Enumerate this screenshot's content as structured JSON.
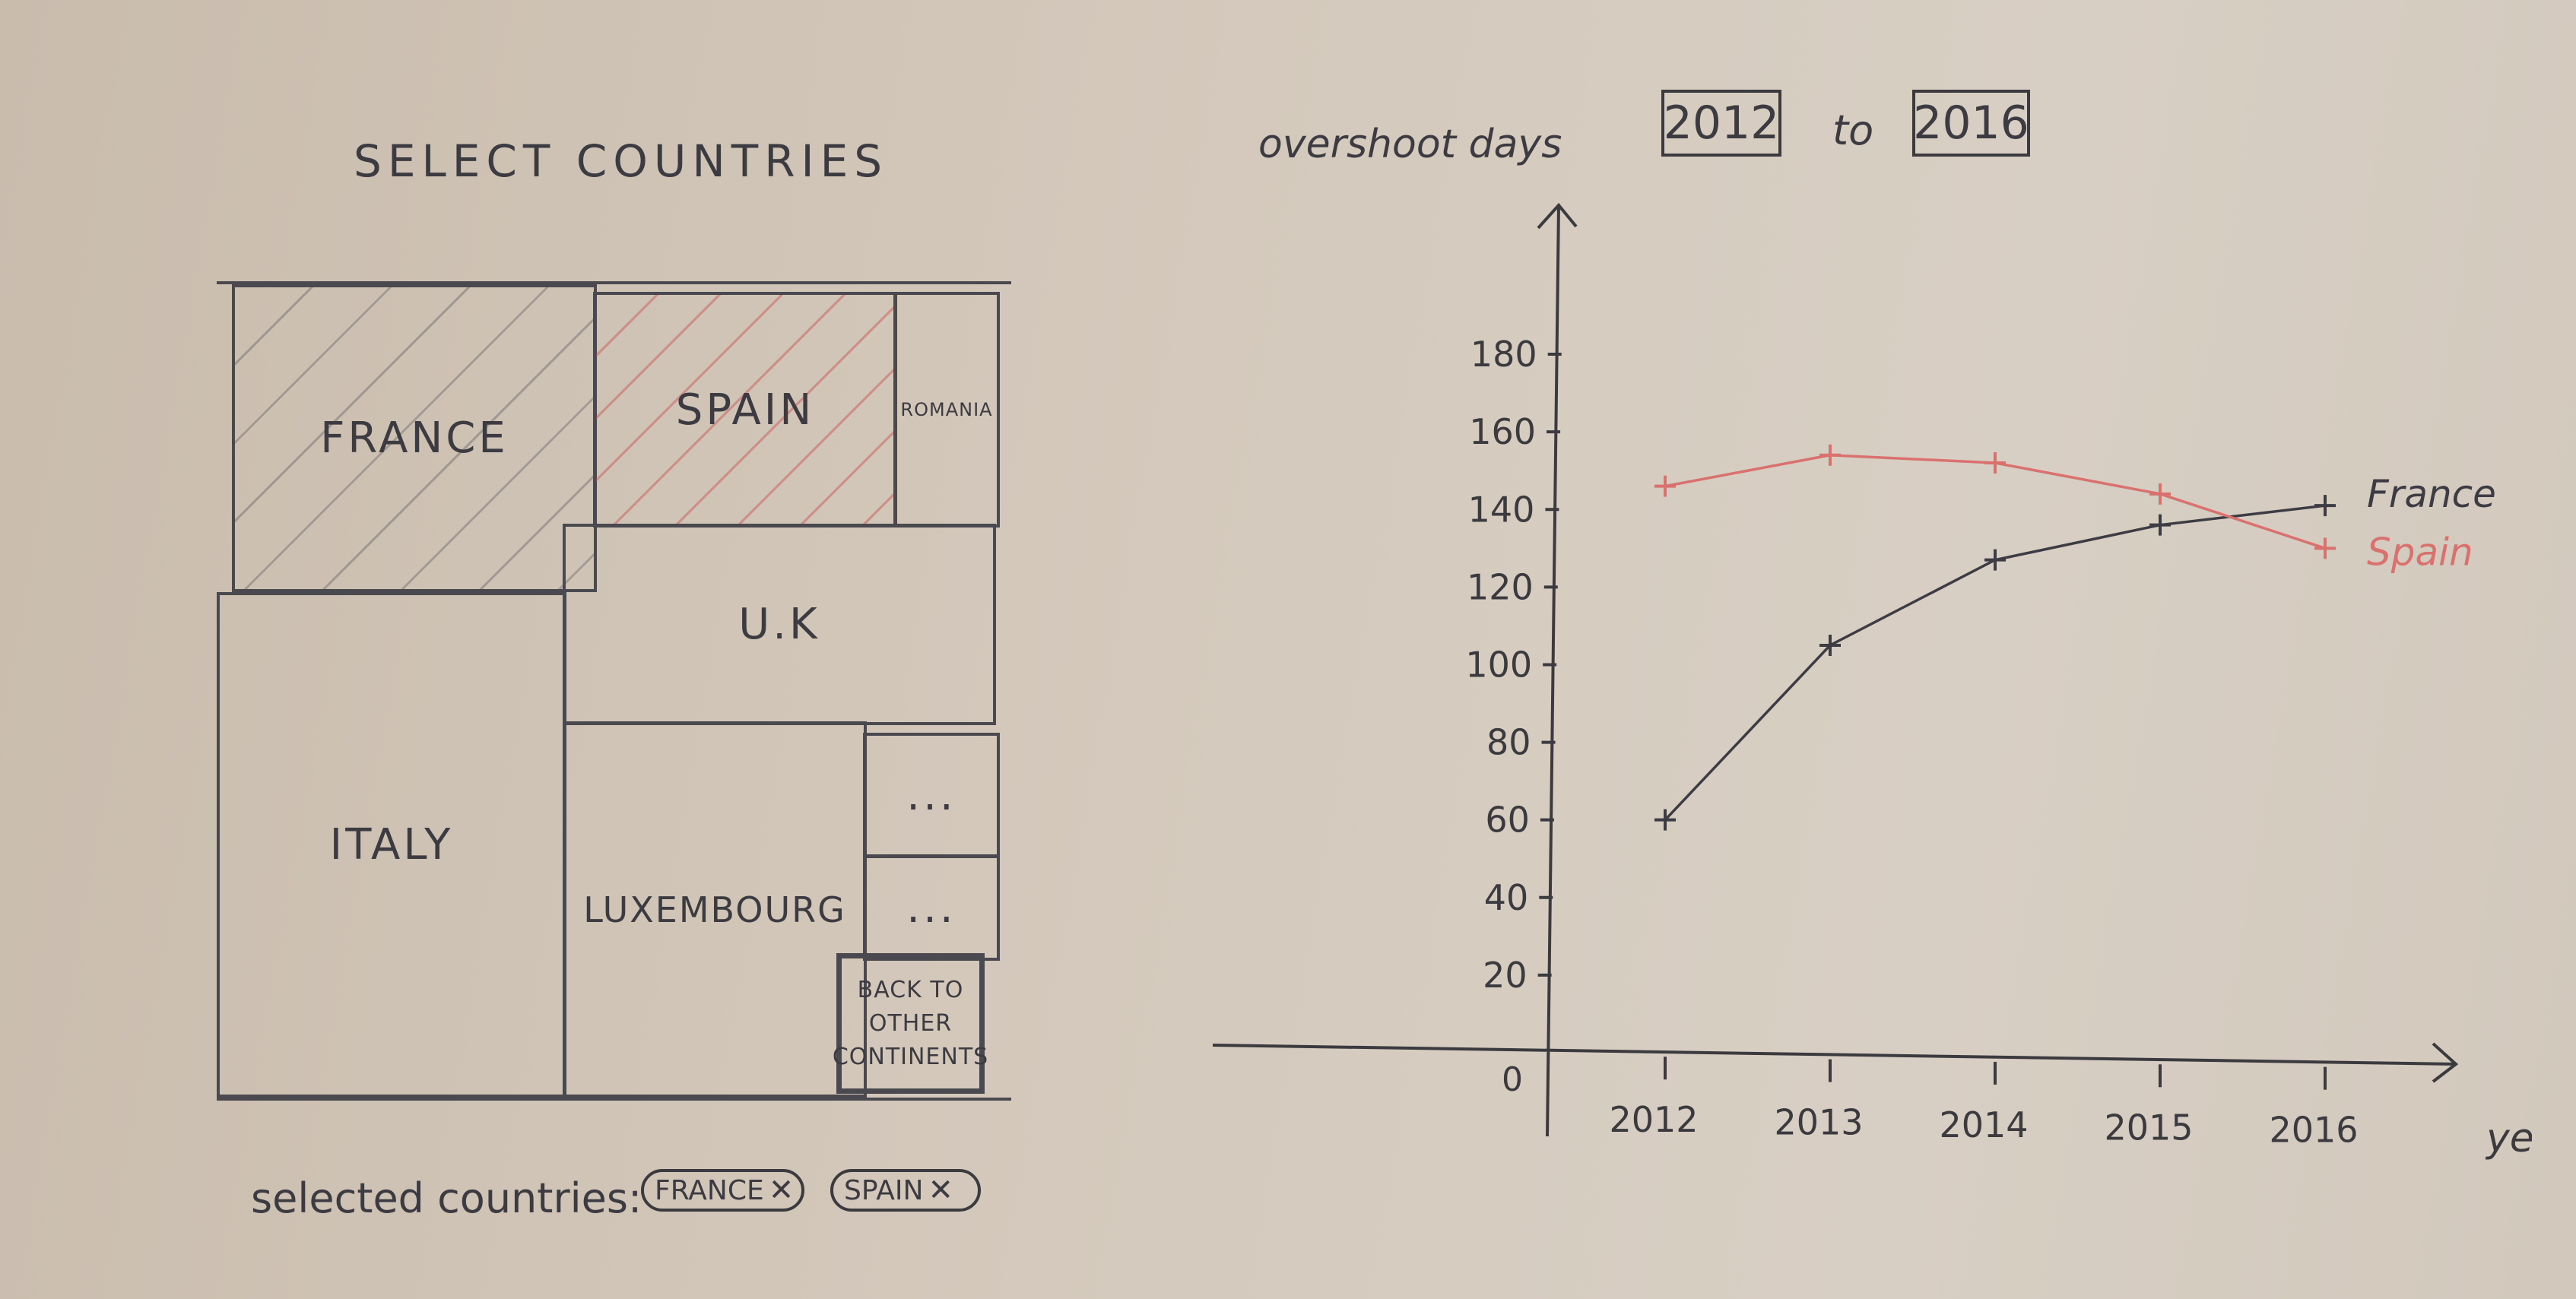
{
  "left_panel": {
    "title": "SELECT COUNTRIES",
    "cells": {
      "france": "FRANCE",
      "spain": "SPAIN",
      "romania": "ROMANIA",
      "uk": "U.K",
      "italy": "ITALY",
      "luxembourg": "LUXEMBOURG",
      "more1": "...",
      "more2": "...",
      "back": "BACK TO OTHER CONTINENTS"
    },
    "selected_label": "selected countries:",
    "chips": [
      {
        "label": "FRANCE",
        "remove": "✕"
      },
      {
        "label": "SPAIN",
        "remove": "✕"
      }
    ]
  },
  "right_panel": {
    "y_title": "overshoot days",
    "year_from": "2012",
    "to_word": "to",
    "year_to": "2016"
  },
  "colors": {
    "france_line": "#3d3c44",
    "spain_line": "#d9716f",
    "ink": "#3b3a3f"
  },
  "chart_data": {
    "type": "line",
    "x": [
      "2012",
      "2013",
      "2014",
      "2015",
      "2016"
    ],
    "xlabel": "year",
    "ylabel": "",
    "y_ticks": [
      20,
      40,
      60,
      80,
      100,
      120,
      140,
      160,
      180
    ],
    "origin_label": "0",
    "ylim": [
      0,
      200
    ],
    "series": [
      {
        "name": "France",
        "values": [
          60,
          105,
          127,
          136,
          141
        ]
      },
      {
        "name": "Spain",
        "values": [
          146,
          154,
          152,
          144,
          130
        ]
      }
    ],
    "legend": "inline-right"
  }
}
